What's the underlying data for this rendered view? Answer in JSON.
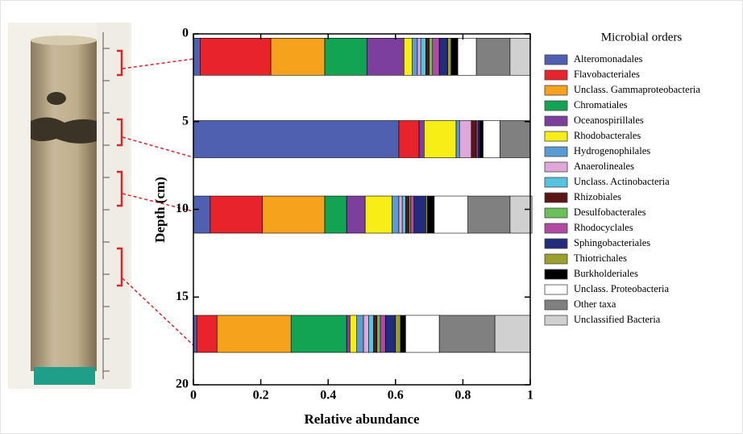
{
  "chart_data": {
    "type": "bar",
    "orientation": "horizontal",
    "legend_title": "Microbial orders",
    "y_label": "Depth (cm)",
    "x_label": "Relative abundance",
    "y": [
      1.3,
      6.0,
      10.3,
      17.1
    ],
    "ylim": [
      0,
      20
    ],
    "y_inverted": true,
    "yticks": [
      0,
      5,
      10,
      15,
      20
    ],
    "xlim": [
      0,
      1
    ],
    "xticks": [
      0,
      0.2,
      0.4,
      0.6,
      0.8,
      1
    ],
    "legend": "right",
    "series": [
      {
        "name": "Alteromonadales",
        "color": "#4f60b0",
        "values": [
          0.02,
          0.61,
          0.05,
          0.01
        ]
      },
      {
        "name": "Flavobacteriales",
        "color": "#e8232b",
        "values": [
          0.21,
          0.06,
          0.155,
          0.06
        ]
      },
      {
        "name": "Unclass. Gammaproteobacteria",
        "color": "#f7a21c",
        "values": [
          0.16,
          0,
          0.185,
          0.22
        ]
      },
      {
        "name": "Chromatiales",
        "color": "#12a452",
        "values": [
          0.125,
          0,
          0.065,
          0.165
        ]
      },
      {
        "name": "Oceanospirillales",
        "color": "#7c3f9e",
        "values": [
          0.11,
          0.015,
          0.055,
          0.01
        ]
      },
      {
        "name": "Rhodobacterales",
        "color": "#f6ee16",
        "values": [
          0.025,
          0.095,
          0.08,
          0.02
        ]
      },
      {
        "name": "Hydrogenophilales",
        "color": "#5b9bd5",
        "values": [
          0.015,
          0.01,
          0.02,
          0.02
        ]
      },
      {
        "name": "Anaerolineales",
        "color": "#e0a8d8",
        "values": [
          0.01,
          0.035,
          0.01,
          0.015
        ]
      },
      {
        "name": "Unclass. Actinobacteria",
        "color": "#56c4e0",
        "values": [
          0.015,
          0,
          0.01,
          0.015
        ]
      },
      {
        "name": "Rhizobiales",
        "color": "#5a1515",
        "values": [
          0.01,
          0.015,
          0.01,
          0.01
        ]
      },
      {
        "name": "Desulfobacterales",
        "color": "#6bbf5a",
        "values": [
          0.01,
          0,
          0.005,
          0.01
        ]
      },
      {
        "name": "Rhodocyclales",
        "color": "#b14aa0",
        "values": [
          0.02,
          0.005,
          0.01,
          0.015
        ]
      },
      {
        "name": "Sphingobacteriales",
        "color": "#232b7d",
        "values": [
          0.025,
          0.005,
          0.035,
          0.03
        ]
      },
      {
        "name": "Thiotrichales",
        "color": "#9aa12b",
        "values": [
          0.01,
          0,
          0.005,
          0.015
        ]
      },
      {
        "name": "Burkholderiales",
        "color": "#000000",
        "values": [
          0.02,
          0.01,
          0.02,
          0.015
        ]
      },
      {
        "name": "Unclass. Proteobacteria",
        "color": "#ffffff",
        "values": [
          0.055,
          0.05,
          0.1,
          0.1
        ]
      },
      {
        "name": "Other taxa",
        "color": "#808080",
        "values": [
          0.1,
          0.09,
          0.125,
          0.165
        ]
      },
      {
        "name": "Unclassified Bacteria",
        "color": "#d0d0d0",
        "values": [
          0.06,
          0,
          0.065,
          0.105
        ]
      }
    ]
  }
}
